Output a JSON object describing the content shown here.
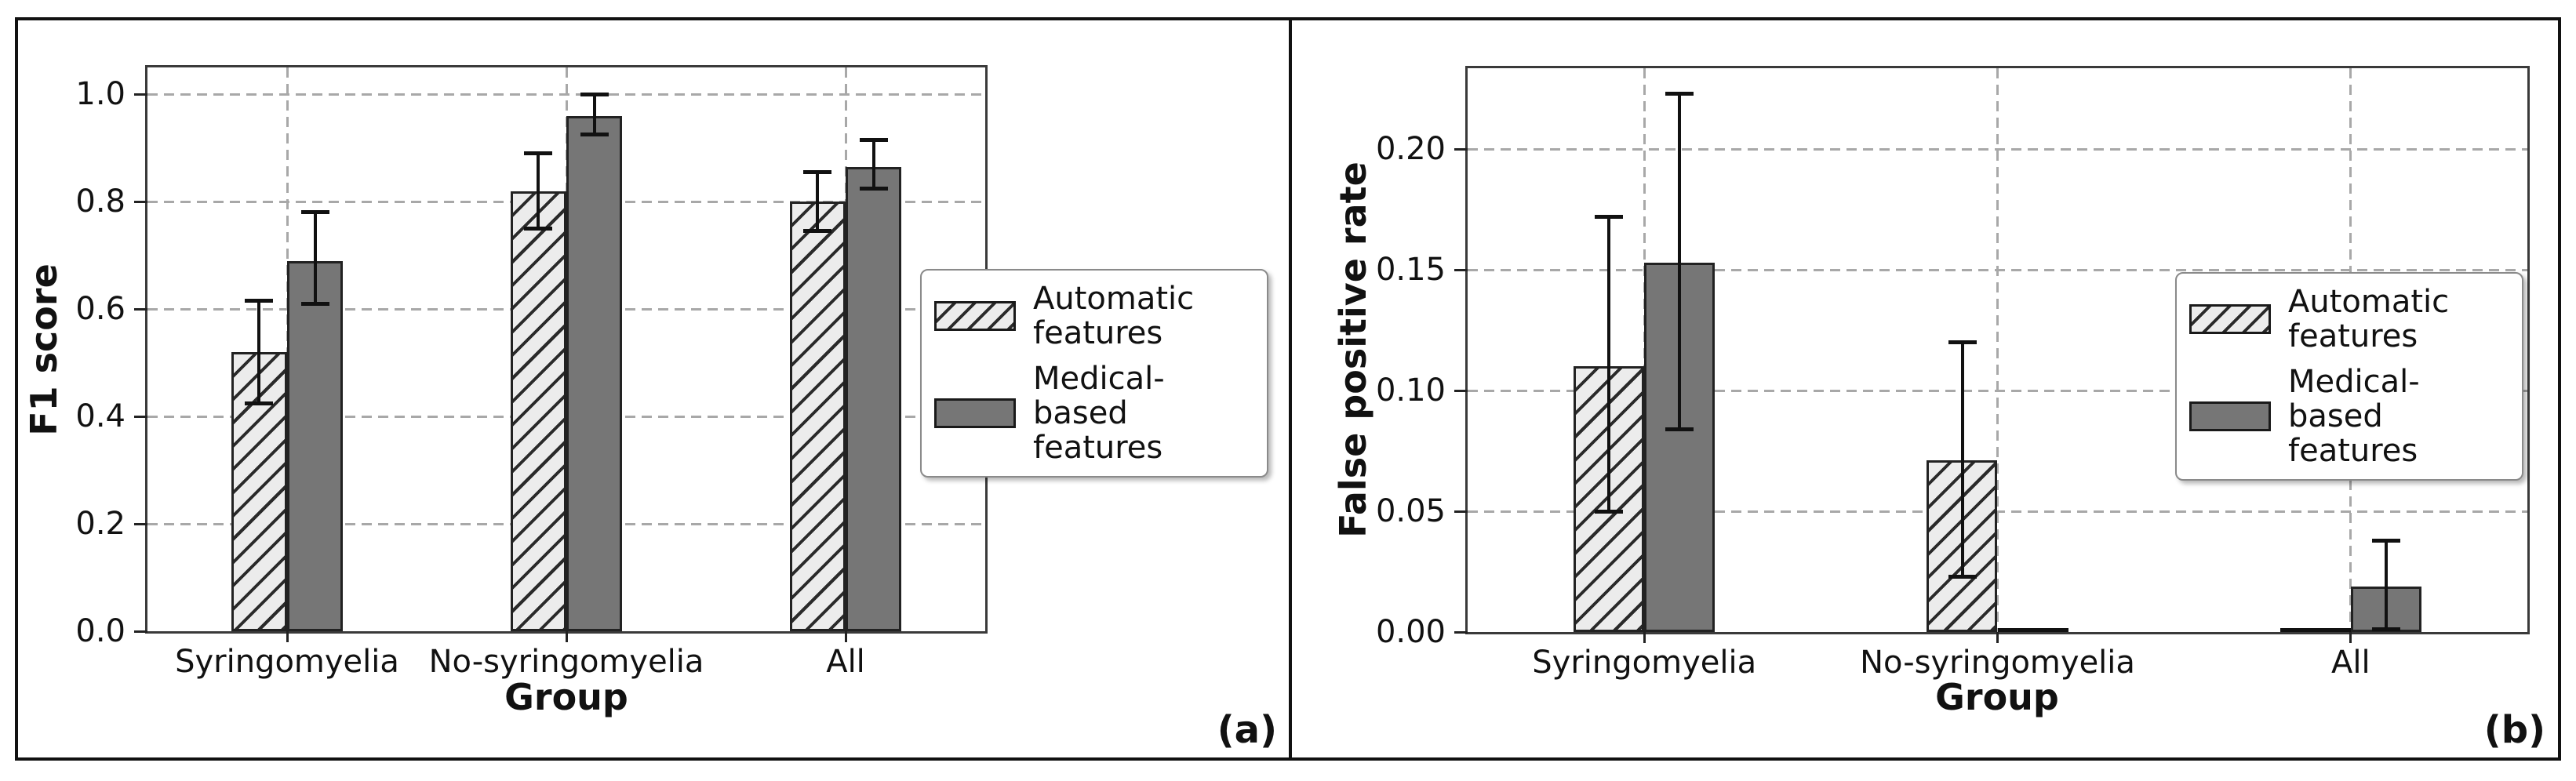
{
  "figure": {
    "background": "#ffffff",
    "border_color": "#111111",
    "panel_a_label": "(a)",
    "panel_b_label": "(b)"
  },
  "colors": {
    "solid_bar": "#767676",
    "hatch_fill": "#ececec",
    "hatch_line": "#2a2a2a",
    "bar_edge": "#222222",
    "grid_line": "#a8a8a8",
    "error_bar": "#111111"
  },
  "legend": {
    "items": [
      {
        "label": "Automatic features",
        "swatch": "hatched"
      },
      {
        "label": "Medical-based features",
        "swatch": "solid"
      }
    ]
  },
  "chart_data": [
    {
      "type": "bar",
      "panel_label": "(a)",
      "title": "",
      "xlabel": "Group",
      "ylabel": "F1 score",
      "categories": [
        "Syringomyelia",
        "No-syringomyelia",
        "All"
      ],
      "series": [
        {
          "name": "Automatic features",
          "style": "hatched",
          "values": [
            0.52,
            0.82,
            0.8
          ],
          "whisker_low": [
            0.425,
            0.75,
            0.745
          ],
          "whisker_high": [
            0.615,
            0.89,
            0.855
          ]
        },
        {
          "name": "Medical-based features",
          "style": "solid",
          "values": [
            0.69,
            0.96,
            0.865
          ],
          "whisker_low": [
            0.61,
            0.925,
            0.825
          ],
          "whisker_high": [
            0.78,
            1.0,
            0.915
          ]
        }
      ],
      "yticks": {
        "values": [
          0,
          0.2,
          0.4,
          0.6,
          0.8,
          1.0
        ],
        "labels": [
          "0.0",
          "0.2",
          "0.4",
          "0.6",
          "0.8",
          "1.0"
        ]
      },
      "ylim": [
        0,
        1.05
      ],
      "grid": "dashed-both-axes",
      "legend_position": "center-right-overlapping-spine"
    },
    {
      "type": "bar",
      "panel_label": "(b)",
      "title": "",
      "xlabel": "Group",
      "ylabel": "False positive rate",
      "categories": [
        "Syringomyelia",
        "No-syringomyelia",
        "All"
      ],
      "series": [
        {
          "name": "Automatic features",
          "style": "hatched",
          "values": [
            0.11,
            0.071,
            0.001
          ],
          "whisker_low": [
            0.05,
            0.023,
            null
          ],
          "whisker_high": [
            0.172,
            0.12,
            null
          ]
        },
        {
          "name": "Medical-based features",
          "style": "solid",
          "values": [
            0.153,
            0.001,
            0.019
          ],
          "whisker_low": [
            0.084,
            null,
            0.001
          ],
          "whisker_high": [
            0.223,
            null,
            0.038
          ]
        }
      ],
      "yticks": {
        "values": [
          0,
          0.05,
          0.1,
          0.15,
          0.2
        ],
        "labels": [
          "0.00",
          "0.05",
          "0.10",
          "0.15",
          "0.20"
        ]
      },
      "ylim": [
        0,
        0.2335
      ],
      "grid": "dashed-both-axes",
      "legend_position": "center-right-inside"
    }
  ]
}
